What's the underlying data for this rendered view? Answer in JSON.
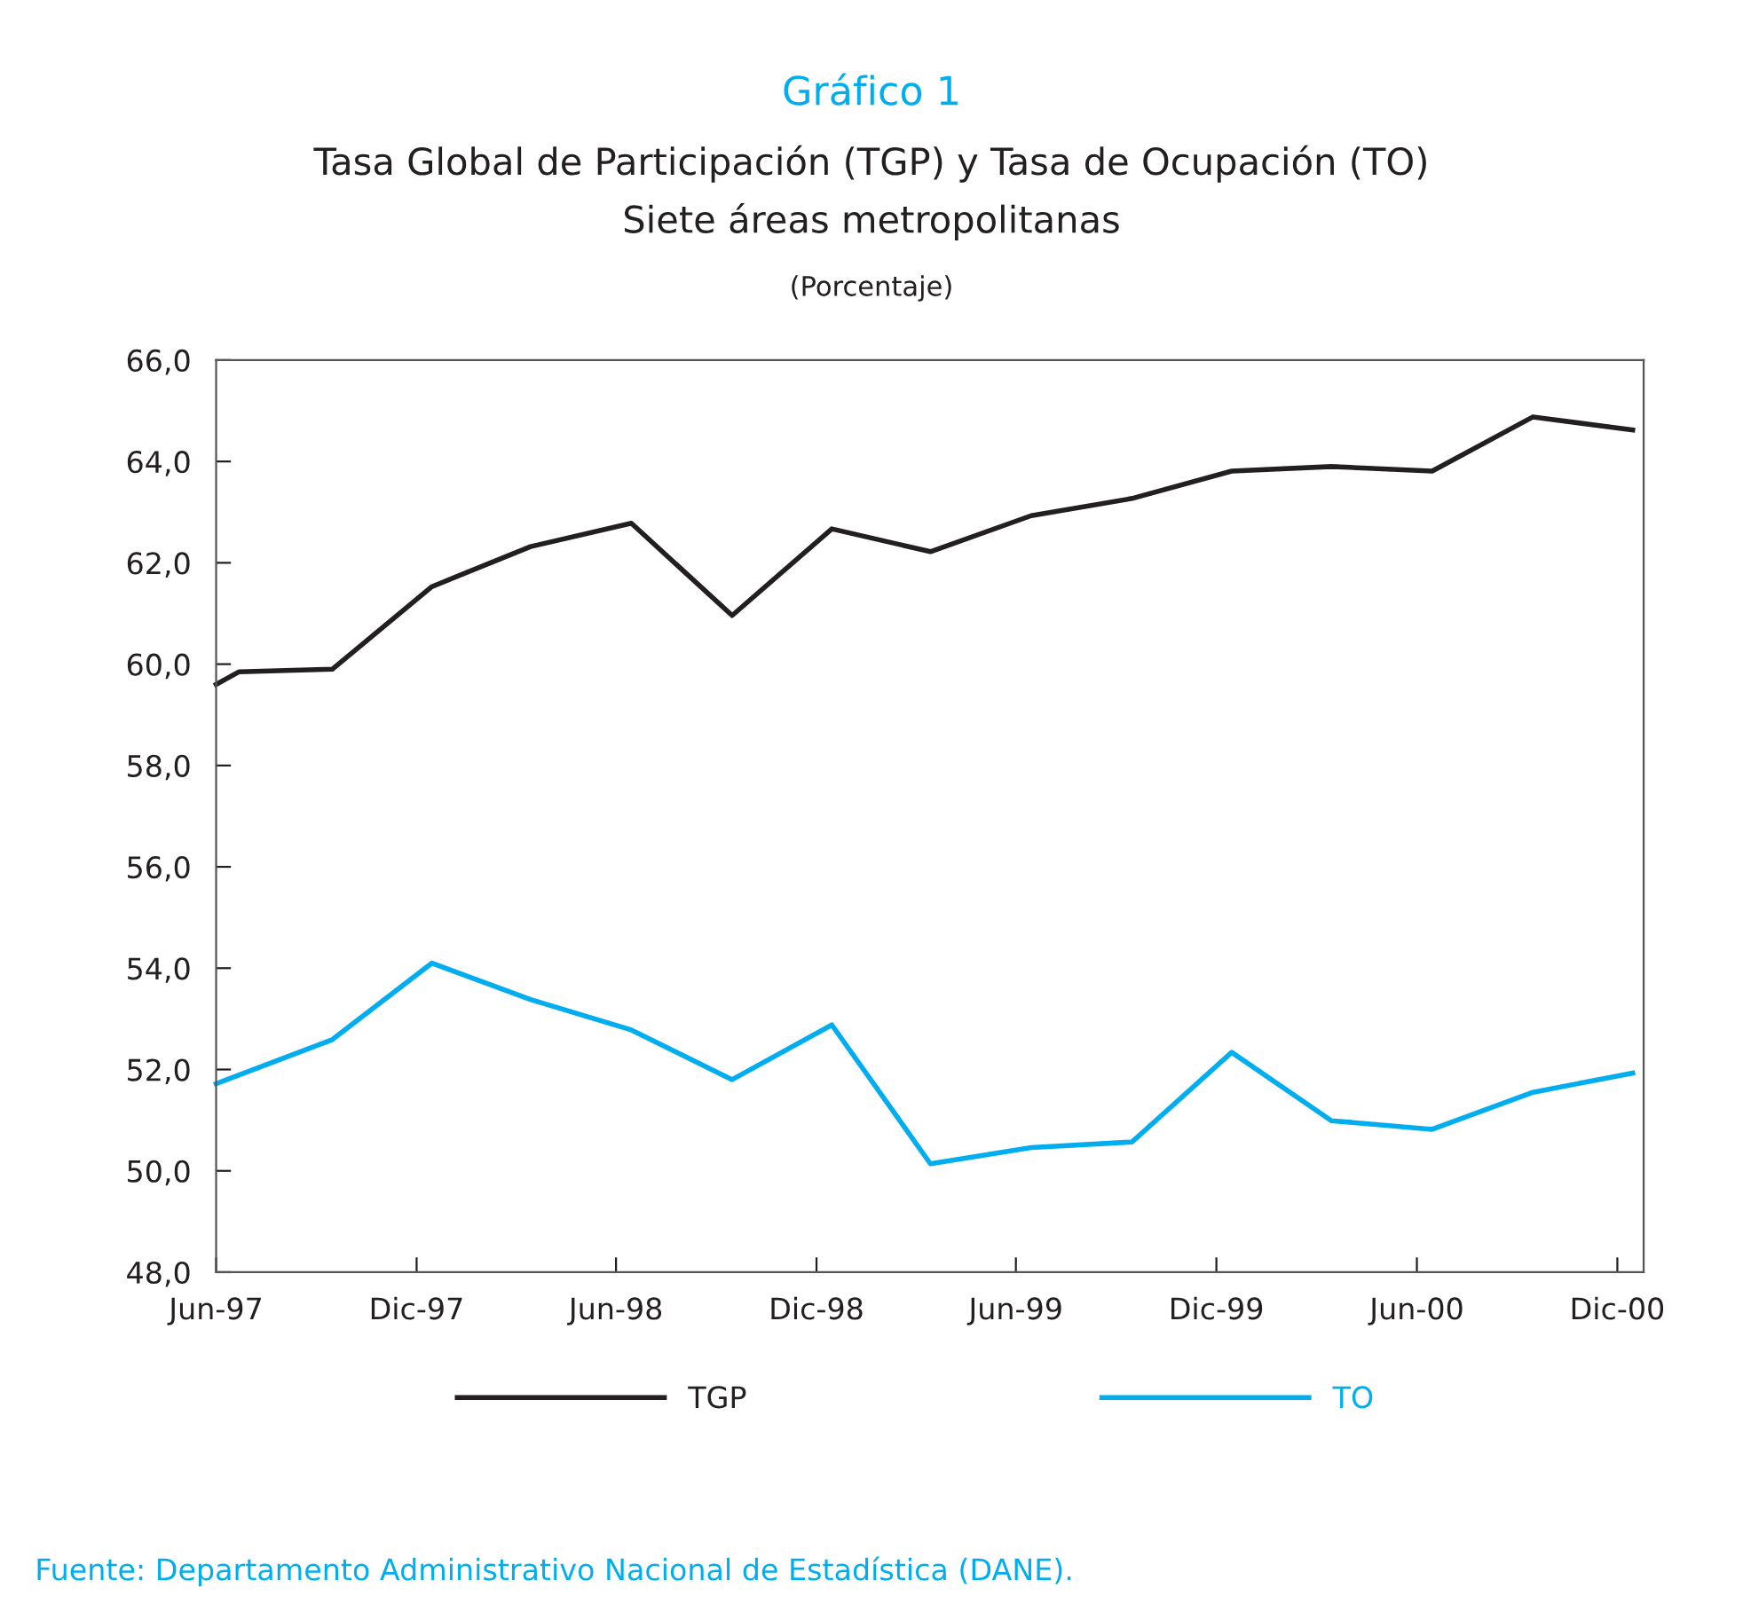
{
  "chart_data": {
    "type": "line",
    "title": "Gráfico 1",
    "subtitle": "Tasa Global de Participación (TGP) y Tasa de Ocupación (TO)\nSiete áreas metropolitanas",
    "annotations": [
      "(Porcentaje)",
      "Fuente: Departamento Administrativo Nacional de Estadística (DANE)."
    ],
    "series": [
      {
        "name": "TGP",
        "color": "#231f20",
        "x": [
          "1997-06-01",
          "1997-06-22",
          "1997-09-15",
          "1997-12-15",
          "1998-03-15",
          "1998-06-15",
          "1998-09-15",
          "1998-12-15",
          "1999-03-15",
          "1999-06-15",
          "1999-09-15",
          "1999-12-15",
          "2000-03-15",
          "2000-06-15",
          "2000-09-15",
          "2000-12-15"
        ],
        "values": [
          59.6,
          59.85,
          59.9,
          61.53,
          62.32,
          62.78,
          60.96,
          62.67,
          62.22,
          62.93,
          63.27,
          63.81,
          63.9,
          63.81,
          64.88,
          64.62
        ]
      },
      {
        "name": "TO",
        "color": "#00aeef",
        "x": [
          "1997-06-01",
          "1997-09-15",
          "1997-12-15",
          "1998-03-15",
          "1998-06-15",
          "1998-09-15",
          "1998-12-15",
          "1999-03-15",
          "1999-06-15",
          "1999-09-15",
          "1999-12-15",
          "2000-03-15",
          "2000-06-15",
          "2000-09-15",
          "2000-12-15"
        ],
        "values": [
          51.72,
          52.59,
          54.1,
          53.38,
          52.78,
          51.8,
          52.88,
          50.14,
          50.46,
          50.57,
          52.34,
          50.99,
          50.82,
          51.55,
          51.93
        ]
      }
    ],
    "xlim": [
      "1997-06-01",
      "2000-12-25"
    ],
    "xticks": [
      {
        "value": "1997-06-01",
        "label": "Jun-97"
      },
      {
        "value": "1997-12-01",
        "label": "Dic-97"
      },
      {
        "value": "1998-06-01",
        "label": "Jun-98"
      },
      {
        "value": "1998-12-01",
        "label": "Dic-98"
      },
      {
        "value": "1999-06-01",
        "label": "Jun-99"
      },
      {
        "value": "1999-12-01",
        "label": "Dic-99"
      },
      {
        "value": "2000-06-01",
        "label": "Jun-00"
      },
      {
        "value": "2000-12-01",
        "label": "Dic-00"
      }
    ],
    "ylim": [
      48,
      66
    ],
    "yticks": [
      {
        "value": 48,
        "label": "48,0"
      },
      {
        "value": 50,
        "label": "50,0"
      },
      {
        "value": 52,
        "label": "52,0"
      },
      {
        "value": 54,
        "label": "54,0"
      },
      {
        "value": 56,
        "label": "56,0"
      },
      {
        "value": 58,
        "label": "58,0"
      },
      {
        "value": 60,
        "label": "60,0"
      },
      {
        "value": 62,
        "label": "62,0"
      },
      {
        "value": 64,
        "label": "64,0"
      },
      {
        "value": 66,
        "label": "66,0"
      }
    ],
    "grid": false,
    "legend": "bottom",
    "marker": "none",
    "line_style": "solid"
  }
}
